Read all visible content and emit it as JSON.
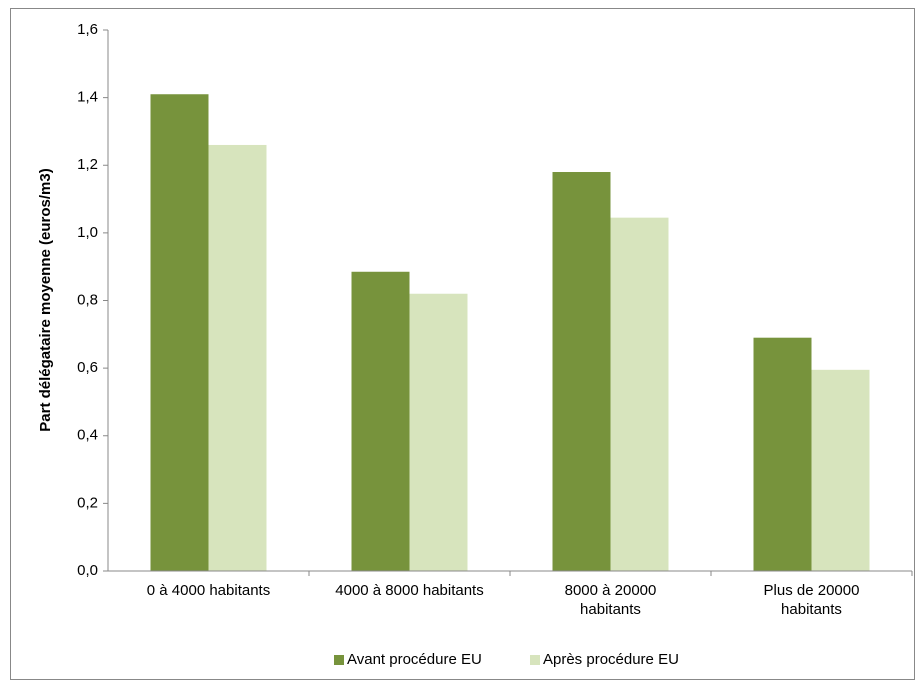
{
  "chart_data": {
    "type": "bar",
    "y_label": "Part délégataire moyenne (euros/m3)",
    "categories": [
      "0 à 4000 habitants",
      "4000 à 8000 habitants",
      "8000 à 20000\nhabitants",
      "Plus de 20000\nhabitants"
    ],
    "series": [
      {
        "name": "Avant procédure EU",
        "color": "#77933c",
        "values": [
          1.41,
          0.885,
          1.18,
          0.69
        ]
      },
      {
        "name": "Après procédure EU",
        "color": "#d7e4bd",
        "values": [
          1.26,
          0.82,
          1.045,
          0.595
        ]
      }
    ],
    "ylim": [
      0,
      1.6
    ],
    "yticks": [
      {
        "value": 0,
        "label": "0,0"
      },
      {
        "value": 0.2,
        "label": "0,2"
      },
      {
        "value": 0.4,
        "label": "0,4"
      },
      {
        "value": 0.6,
        "label": "0,6"
      },
      {
        "value": 0.8,
        "label": "0,8"
      },
      {
        "value": 1.0,
        "label": "1,0"
      },
      {
        "value": 1.2,
        "label": "1,2"
      },
      {
        "value": 1.4,
        "label": "1,4"
      },
      {
        "value": 1.6,
        "label": "1,6"
      }
    ],
    "grid": false,
    "legend": "bottom"
  }
}
